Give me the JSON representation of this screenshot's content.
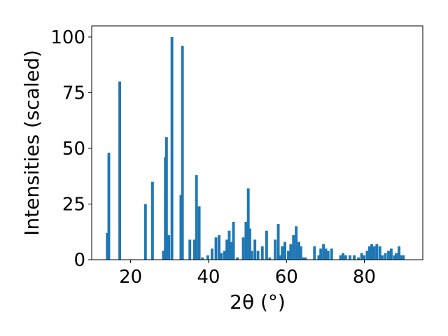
{
  "chart_data": {
    "type": "bar",
    "xlabel": "2θ (°)",
    "ylabel": "Intensities (scaled)",
    "xlim": [
      10,
      95
    ],
    "ylim": [
      0,
      105
    ],
    "xticks": [
      20,
      40,
      60,
      80
    ],
    "yticks": [
      0,
      25,
      50,
      75,
      100
    ],
    "x_tick_labels": [
      "20",
      "40",
      "60",
      "80"
    ],
    "y_tick_labels": [
      "0",
      "25",
      "50",
      "75",
      "100"
    ],
    "bar_color": "#1f77b4",
    "bar_width": 0.7,
    "series": [
      {
        "x": [
          14.0,
          14.4,
          17.2,
          23.8,
          25.6,
          28.4,
          28.9,
          29.2,
          29.8,
          30.6,
          32.9,
          33.3,
          35.2,
          36.4,
          36.9,
          37.6,
          38.4,
          39.8,
          40.9,
          41.9,
          42.7,
          43.3,
          44.1,
          44.7,
          45.3,
          45.8,
          46.4,
          47.4,
          48.9,
          49.6,
          50.2,
          50.6,
          51.1,
          51.9,
          52.7,
          53.8,
          54.9,
          55.7,
          57.1,
          57.9,
          58.5,
          58.9,
          59.6,
          60.5,
          61.1,
          61.8,
          62.5,
          63.2,
          63.7,
          64.3,
          64.9,
          67.2,
          68.3,
          68.8,
          69.5,
          70.1,
          70.7,
          71.6,
          73.9,
          74.5,
          75.2,
          76.3,
          77.4,
          78.5,
          79.3,
          79.9,
          80.7,
          81.3,
          81.9,
          82.5,
          83.2,
          84.0,
          84.6,
          85.4,
          86.2,
          86.9,
          87.7,
          88.2,
          88.9,
          89.5,
          90.0
        ],
        "values": [
          12,
          48,
          80,
          25,
          35,
          4,
          46,
          55,
          11,
          100,
          29,
          96,
          9,
          9,
          38,
          24,
          1,
          2,
          5,
          10,
          11,
          3,
          4,
          9,
          13,
          8,
          17,
          1,
          10,
          17,
          32,
          14,
          4,
          9,
          4,
          6,
          13,
          1,
          9,
          16,
          2,
          6,
          8,
          4,
          7,
          11,
          15,
          8,
          6,
          1,
          1,
          6,
          2,
          5,
          7,
          5,
          4,
          5,
          2,
          3,
          2,
          2,
          2,
          1,
          3,
          2,
          4,
          6,
          7,
          6,
          7,
          6,
          2,
          3,
          4,
          5,
          2,
          3,
          6,
          2,
          2
        ]
      }
    ]
  }
}
